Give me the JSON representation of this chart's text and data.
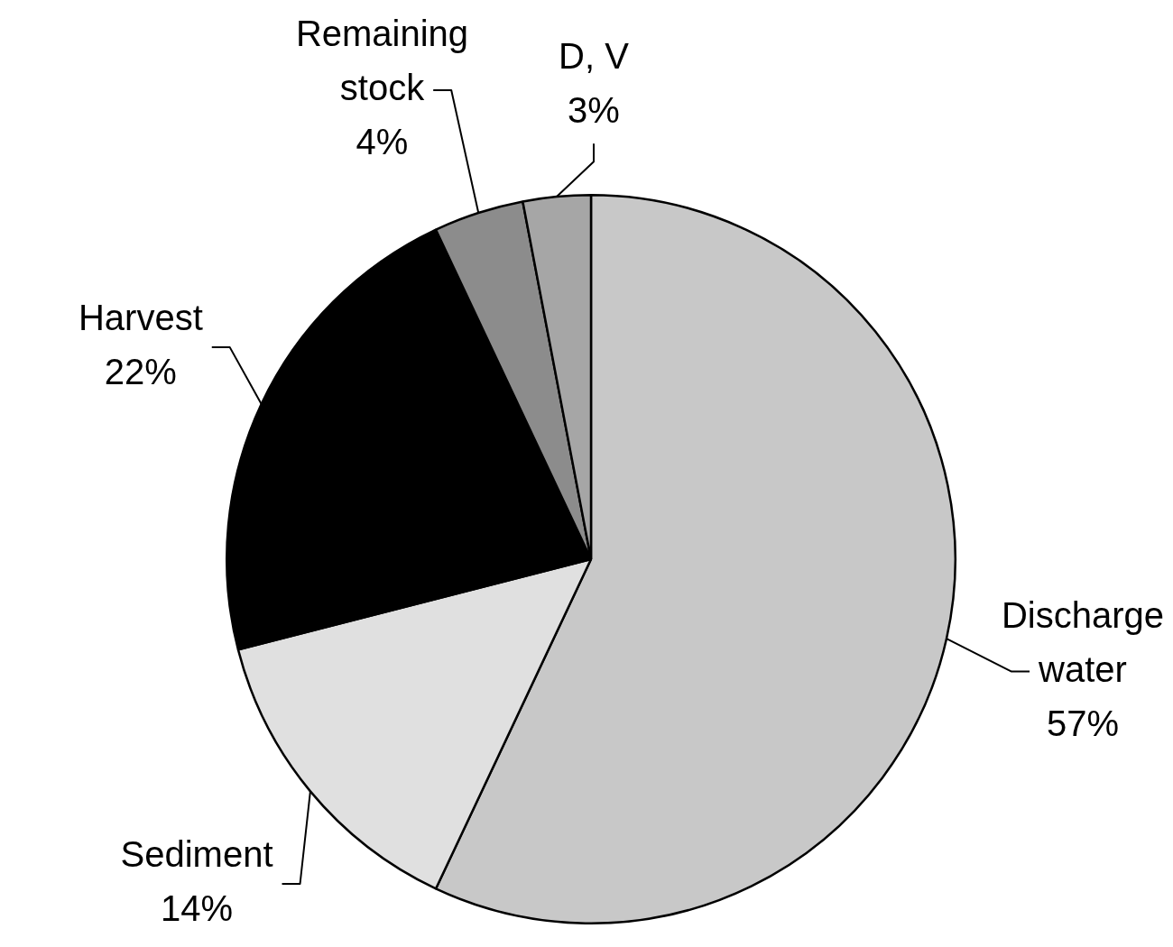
{
  "chart_data": {
    "type": "pie",
    "categories": [
      "Discharge water",
      "Sediment",
      "Harvest",
      "Remaining stock",
      "D, V"
    ],
    "values": [
      57,
      14,
      22,
      4,
      3
    ],
    "colors": [
      "#c8c8c8",
      "#e0e0e0",
      "#000000",
      "#8c8c8c",
      "#a6a6a6"
    ],
    "value_labels": [
      "57%",
      "14%",
      "22%",
      "4%",
      "3%"
    ]
  }
}
